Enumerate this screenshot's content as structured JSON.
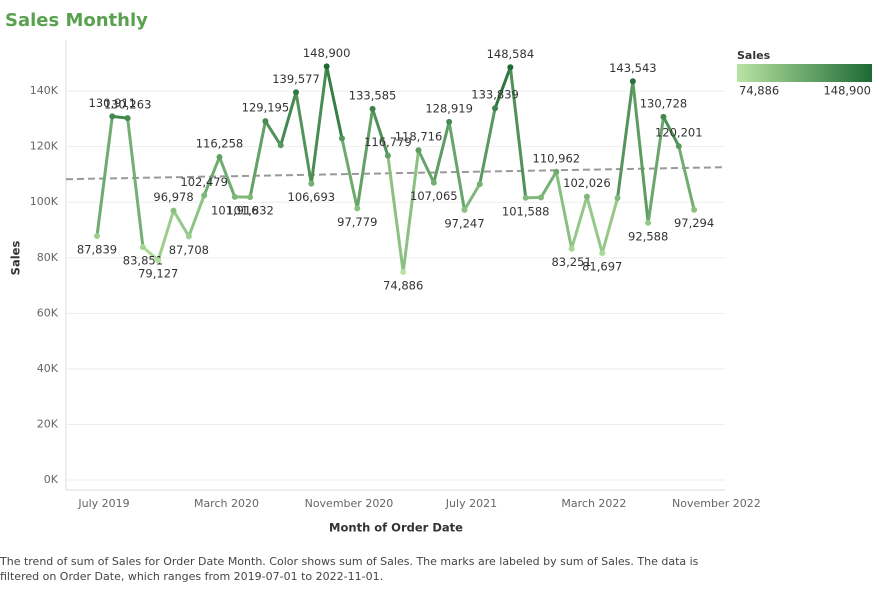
{
  "chart_data": {
    "type": "line",
    "title": "Sales Monthly",
    "x_label": "Month of Order Date",
    "y_label": "Sales",
    "categories": [
      "July 2019",
      null,
      null,
      null,
      null,
      null,
      null,
      null,
      "March 2020",
      null,
      null,
      null,
      null,
      null,
      null,
      null,
      "November 2020",
      null,
      null,
      null,
      null,
      null,
      null,
      null,
      "July 2021",
      null,
      null,
      null,
      null,
      null,
      null,
      null,
      "March 2022",
      null,
      null,
      null,
      null,
      null,
      null,
      null,
      "November 2022"
    ],
    "series": [
      {
        "name": "Sales",
        "values": [
          87839,
          130911,
          130263,
          83851,
          79127,
          96978,
          87708,
          102479,
          116258,
          101916,
          101832,
          129195,
          120500,
          139577,
          106693,
          148900,
          123000,
          97779,
          133585,
          116779,
          74886,
          118716,
          107065,
          128919,
          97247,
          106500,
          133839,
          148584,
          101588,
          101700,
          110962,
          83251,
          102026,
          81697,
          101500,
          143543,
          92588,
          130728,
          120201,
          97294,
          null
        ],
        "value_labels": [
          "87,839",
          "130,911",
          "130,263",
          "83,851",
          "79,127",
          "96,978",
          "87,708",
          "102,479",
          "116,258",
          "101,916",
          "101,832",
          "129,195",
          null,
          "139,577",
          "106,693",
          "148,900",
          null,
          "97,779",
          "133,585",
          "116,779",
          "74,886",
          "118,716",
          "107,065",
          "128,919",
          "97,247",
          null,
          "133,839",
          "148,584",
          "101,588",
          null,
          "110,962",
          "83,251",
          "102,026",
          "81,697",
          null,
          "143,543",
          "92,588",
          "130,728",
          "120,201",
          "97,294",
          null
        ]
      }
    ],
    "ylim": [
      -3600,
      158400
    ],
    "yticks": [
      {
        "value": 0,
        "label": "0K"
      },
      {
        "value": 20000,
        "label": "20K"
      },
      {
        "value": 40000,
        "label": "40K"
      },
      {
        "value": 60000,
        "label": "60K"
      },
      {
        "value": 80000,
        "label": "80K"
      },
      {
        "value": 100000,
        "label": "100K"
      },
      {
        "value": 120000,
        "label": "120K"
      },
      {
        "value": 140000,
        "label": "140K"
      }
    ],
    "grid": true,
    "trend_line": true,
    "color_scale": {
      "title": "Sales",
      "min": {
        "value": 74886,
        "label": "74,886"
      },
      "max": {
        "value": 148900,
        "label": "148,900"
      },
      "colors": [
        "#b9e4a3",
        "#1d6a34"
      ]
    },
    "caption": [
      "The trend of sum of Sales for Order Date Month.  Color shows sum of Sales.  The marks are labeled by sum of Sales. The data is",
      "filtered on Order Date, which ranges from 2019-07-01 to 2022-11-01."
    ]
  }
}
